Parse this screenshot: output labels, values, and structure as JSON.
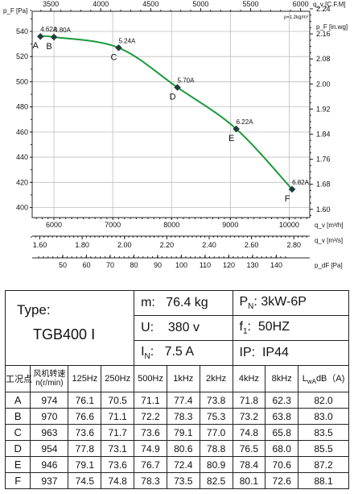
{
  "chart_data": {
    "type": "line",
    "title": "",
    "top_axis": {
      "label": "q_v [C.F.M]",
      "ticks": [
        "3500",
        "4000",
        "4500",
        "5000",
        "5500",
        "6000"
      ],
      "values": [
        3500,
        4000,
        4500,
        5000,
        5500,
        6000
      ]
    },
    "density_note": "ρ=1.2kg/m³",
    "left_axis": {
      "label": "p_F [Pa]",
      "ticks": [
        "400",
        "420",
        "440",
        "460",
        "480",
        "500",
        "520",
        "540"
      ],
      "range": [
        392,
        556
      ]
    },
    "right_axis": {
      "label": "p_F [in.wg]",
      "ticks": [
        "1.60",
        "1.68",
        "1.76",
        "1.84",
        "1.92",
        "2.00",
        "2.08",
        "2.16",
        "2.24"
      ],
      "values": [
        1.6,
        1.68,
        1.76,
        1.84,
        1.92,
        2.0,
        2.08,
        2.16,
        2.24
      ]
    },
    "x_axis": {
      "label": "q_v [m³/h]",
      "ticks": [
        "6000",
        "7000",
        "8000",
        "9000",
        "10000"
      ],
      "values": [
        6000,
        7000,
        8000,
        9000,
        10000
      ],
      "range": [
        5630,
        10350
      ]
    },
    "secondary_x_axis": {
      "label": "q_v [m³/s]",
      "ticks": [
        "1.60",
        "1.80",
        "2.00",
        "2.20",
        "2.40",
        "2.60",
        "2.80"
      ],
      "values": [
        1.6,
        1.8,
        2.0,
        2.2,
        2.4,
        2.6,
        2.8
      ]
    },
    "dynamic_pressure_axis": {
      "label": "p_dF [Pa]",
      "ticks": [
        "50",
        "60",
        "70",
        "80",
        "90",
        "100",
        "110",
        "120",
        "130",
        "140"
      ]
    },
    "grid": true,
    "series": [
      {
        "color": "#1a9a3c",
        "points": [
          {
            "x": 5770,
            "y": 536,
            "point": "A",
            "current": "4.62A"
          },
          {
            "x": 6000,
            "y": 535.5,
            "point": "B",
            "current": "4.80A"
          },
          {
            "x": 7100,
            "y": 527,
            "point": "C",
            "current": "5.24A"
          },
          {
            "x": 8100,
            "y": 495.5,
            "point": "D",
            "current": "5.70A"
          },
          {
            "x": 9100,
            "y": 462.5,
            "point": "E",
            "current": "6.22A"
          },
          {
            "x": 10050,
            "y": 414.5,
            "point": "F",
            "current": "6.82A"
          }
        ]
      }
    ]
  },
  "spec": {
    "type_label": "Type:",
    "model": "TGB400  Ⅰ",
    "m_label": "m:",
    "m_value": "76.4  kg",
    "pn_label": "P",
    "pn_sub": "N",
    "pn_colon": ":",
    "pn_value": "3kW-6P",
    "u_label": "U:",
    "u_value": "380  v",
    "f_label": "f",
    "f_sub": "1",
    "f_colon": ":",
    "f_value": "50HZ",
    "i_label": "I",
    "i_sub": "N",
    "i_colon": ":",
    "i_value": "7.5 A",
    "ip_label": "IP:",
    "ip_value": "IP44"
  },
  "table": {
    "col_point": "工况点",
    "col_speed_line1": "风机转速",
    "col_speed_line2": "n(r/min)",
    "bands": [
      "125Hz",
      "250Hz",
      "500Hz",
      "1kHz",
      "2kHz",
      "4kHz",
      "8kHz"
    ],
    "lwa_main": "L",
    "lwa_sub": "wA",
    "lwa_unit": "dB（A)",
    "rows": [
      {
        "point": "A",
        "speed": "974",
        "values": [
          "76.1",
          "70.5",
          "71.1",
          "77.4",
          "73.8",
          "71.8",
          "62.3"
        ],
        "lwa": "82.0"
      },
      {
        "point": "B",
        "speed": "970",
        "values": [
          "76.6",
          "71.1",
          "72.2",
          "78.3",
          "75.3",
          "73.2",
          "63.8"
        ],
        "lwa": "83.0"
      },
      {
        "point": "C",
        "speed": "963",
        "values": [
          "73.6",
          "71.7",
          "73.6",
          "79.1",
          "77.0",
          "74.8",
          "65.8"
        ],
        "lwa": "83.5"
      },
      {
        "point": "D",
        "speed": "954",
        "values": [
          "77.8",
          "73.1",
          "74.9",
          "80.6",
          "78.8",
          "76.5",
          "68.0"
        ],
        "lwa": "85.5"
      },
      {
        "point": "E",
        "speed": "946",
        "values": [
          "79.1",
          "73.6",
          "76.7",
          "72.4",
          "80.9",
          "78.4",
          "70.6"
        ],
        "lwa": "87.2"
      },
      {
        "point": "F",
        "speed": "937",
        "values": [
          "74.5",
          "74.8",
          "78.3",
          "73.5",
          "82.5",
          "80.1",
          "72.6"
        ],
        "lwa": "88.1"
      }
    ]
  }
}
